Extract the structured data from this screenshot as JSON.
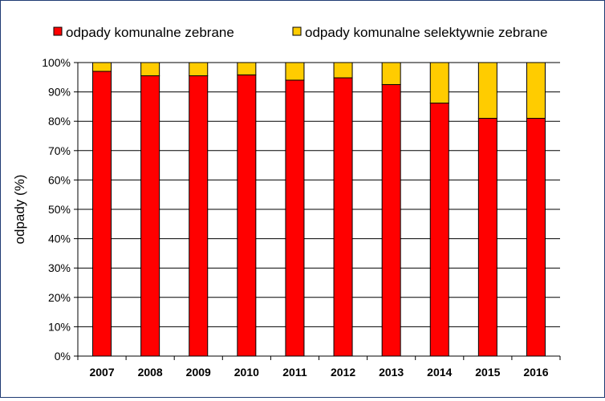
{
  "chart_data": {
    "type": "bar",
    "stacked": true,
    "categories": [
      "2007",
      "2008",
      "2009",
      "2010",
      "2011",
      "2012",
      "2013",
      "2014",
      "2015",
      "2016"
    ],
    "series": [
      {
        "name": "odpady komunalne zebrane",
        "color": "#ff0000",
        "values": [
          97,
          95.5,
          95.5,
          95.8,
          94,
          94.8,
          92.5,
          86.2,
          81,
          81
        ]
      },
      {
        "name": "odpady komunalne selektywnie zebrane",
        "color": "#ffcc00",
        "values": [
          3,
          4.5,
          4.5,
          4.2,
          6,
          5.2,
          7.5,
          13.8,
          19,
          19
        ]
      }
    ],
    "ylabel": "odpady (%)",
    "xlabel": "",
    "ylim": [
      0,
      100
    ],
    "yticks": [
      "0%",
      "10%",
      "20%",
      "30%",
      "40%",
      "50%",
      "60%",
      "70%",
      "80%",
      "90%",
      "100%"
    ],
    "legend_position": "top",
    "grid": true
  }
}
